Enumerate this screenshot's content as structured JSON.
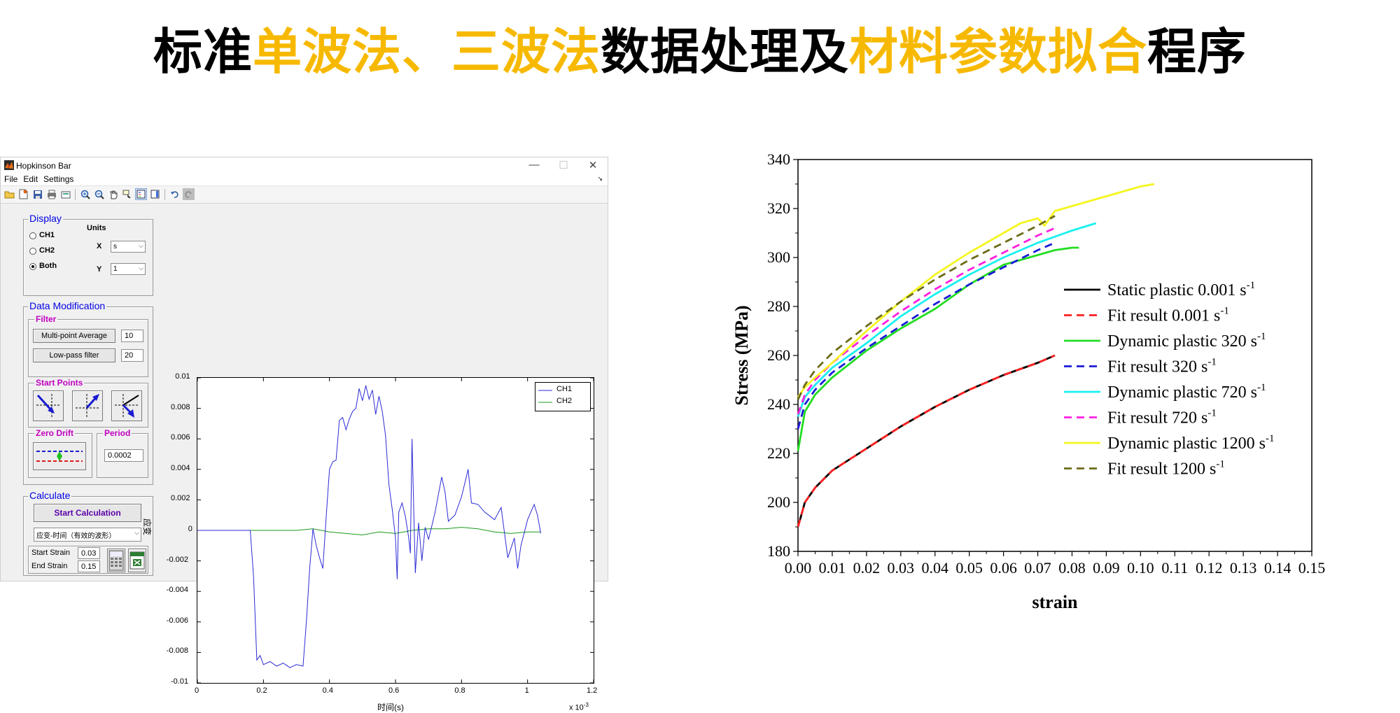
{
  "heading": {
    "parts": [
      {
        "text": "标准",
        "color": "black"
      },
      {
        "text": "单波法、三波法",
        "color": "yellow"
      },
      {
        "text": "数据处理及",
        "color": "black"
      },
      {
        "text": "材料参数拟合",
        "color": "yellow"
      },
      {
        "text": "程序",
        "color": "black"
      }
    ],
    "accent_color": "#f7b900"
  },
  "window": {
    "title": "Hopkinson Bar",
    "controls": {
      "minimize": "—",
      "maximize": "☐",
      "close": "✕"
    },
    "menu": [
      "File",
      "Edit",
      "Settings"
    ],
    "toolbar_icons": [
      "open-folder-icon",
      "new-figure-icon",
      "save-icon",
      "print-icon",
      "print-preview-icon",
      "zoom-in-icon",
      "zoom-out-icon",
      "pan-icon",
      "data-cursor-icon",
      "insert-legend-icon",
      "insert-colorbar-icon",
      "undo-icon",
      "redo-icon"
    ]
  },
  "display_panel": {
    "title": "Display",
    "channels": [
      {
        "label": "CH1",
        "selected": false
      },
      {
        "label": "CH2",
        "selected": false
      },
      {
        "label": "Both",
        "selected": true
      }
    ],
    "units_label": "Units",
    "x_label": "X",
    "x_value": "s",
    "y_label": "Y",
    "y_value": "1"
  },
  "data_mod_panel": {
    "title": "Data Modification",
    "filter_title": "Filter",
    "multipoint_button": "Multi-point Average",
    "multipoint_value": "10",
    "lowpass_button": "Low-pass filter",
    "lowpass_value": "20",
    "start_points_title": "Start Points",
    "zero_drift_title": "Zero Drift",
    "period_title": "Period",
    "period_value": "0.0002"
  },
  "calculate_panel": {
    "title": "Calculate",
    "start_button": "Start Calculation",
    "mode_select": "应变-时间（有效的波形）",
    "start_strain_label": "Start Strain",
    "start_strain_value": "0.03",
    "end_strain_label": "End Strain",
    "end_strain_value": "0.15"
  },
  "chart_data": [
    {
      "type": "line",
      "ylabel": "应变",
      "xlabel": "时间(s)",
      "x_multiplier_label": "x 10",
      "x_multiplier_exp": "-3",
      "xlim": [
        0,
        1.2
      ],
      "ylim": [
        -0.01,
        0.01
      ],
      "xticks": [
        "0",
        "0.2",
        "0.4",
        "0.6",
        "0.8",
        "1",
        "1.2"
      ],
      "yticks": [
        "0.01",
        "0.008",
        "0.006",
        "0.004",
        "0.002",
        "0",
        "-0.002",
        "-0.004",
        "-0.006",
        "-0.008",
        "-0.01"
      ],
      "legend_position": "top-right",
      "series": [
        {
          "name": "CH1",
          "color": "#2b2bd6",
          "points": [
            [
              0,
              0
            ],
            [
              0.1,
              0
            ],
            [
              0.16,
              0
            ],
            [
              0.17,
              -0.003
            ],
            [
              0.18,
              -0.0085
            ],
            [
              0.19,
              -0.0082
            ],
            [
              0.2,
              -0.0088
            ],
            [
              0.22,
              -0.0086
            ],
            [
              0.24,
              -0.0089
            ],
            [
              0.26,
              -0.0087
            ],
            [
              0.28,
              -0.009
            ],
            [
              0.3,
              -0.0088
            ],
            [
              0.32,
              -0.0089
            ],
            [
              0.33,
              -0.006
            ],
            [
              0.34,
              -0.0025
            ],
            [
              0.35,
              0.0001
            ],
            [
              0.36,
              -0.001
            ],
            [
              0.37,
              -0.0018
            ],
            [
              0.38,
              -0.0025
            ],
            [
              0.39,
              0.0009
            ],
            [
              0.4,
              0.004
            ],
            [
              0.41,
              0.0045
            ],
            [
              0.42,
              0.0046
            ],
            [
              0.43,
              0.0072
            ],
            [
              0.44,
              0.0074
            ],
            [
              0.45,
              0.0066
            ],
            [
              0.46,
              0.0073
            ],
            [
              0.47,
              0.0078
            ],
            [
              0.48,
              0.008
            ],
            [
              0.49,
              0.0093
            ],
            [
              0.5,
              0.0085
            ],
            [
              0.51,
              0.0095
            ],
            [
              0.52,
              0.0086
            ],
            [
              0.53,
              0.0092
            ],
            [
              0.54,
              0.0076
            ],
            [
              0.55,
              0.0088
            ],
            [
              0.56,
              0.0078
            ],
            [
              0.57,
              0.0062
            ],
            [
              0.58,
              0.003
            ],
            [
              0.59,
              0.0014
            ],
            [
              0.6,
              -0.0005
            ],
            [
              0.605,
              -0.0032
            ],
            [
              0.61,
              0.0012
            ],
            [
              0.62,
              0.0018
            ],
            [
              0.63,
              0.0009
            ],
            [
              0.64,
              -0.0005
            ],
            [
              0.645,
              -0.0015
            ],
            [
              0.65,
              0.006
            ],
            [
              0.66,
              -0.0028
            ],
            [
              0.67,
              0.0005
            ],
            [
              0.68,
              -0.002
            ],
            [
              0.69,
              0.0002
            ],
            [
              0.7,
              -0.0006
            ],
            [
              0.72,
              0.0012
            ],
            [
              0.74,
              0.0035
            ],
            [
              0.75,
              0.0025
            ],
            [
              0.76,
              0.0006
            ],
            [
              0.78,
              0.001
            ],
            [
              0.8,
              0.0022
            ],
            [
              0.82,
              0.004
            ],
            [
              0.83,
              0.0018
            ],
            [
              0.85,
              0.0017
            ],
            [
              0.87,
              0.0012
            ],
            [
              0.9,
              0.0007
            ],
            [
              0.92,
              0.0015
            ],
            [
              0.94,
              -0.0018
            ],
            [
              0.96,
              -0.0005
            ],
            [
              0.97,
              -0.0025
            ],
            [
              0.98,
              -0.001
            ],
            [
              1.0,
              0.0007
            ],
            [
              1.02,
              0.0017
            ],
            [
              1.03,
              0.001
            ],
            [
              1.04,
              -0.0002
            ]
          ]
        },
        {
          "name": "CH2",
          "color": "#1a9a1a",
          "points": [
            [
              0,
              0
            ],
            [
              0.3,
              0
            ],
            [
              0.35,
              0.0001
            ],
            [
              0.4,
              -0.0001
            ],
            [
              0.45,
              -0.0002
            ],
            [
              0.5,
              -0.0003
            ],
            [
              0.55,
              -0.0001
            ],
            [
              0.6,
              -0.0002
            ],
            [
              0.65,
              0
            ],
            [
              0.7,
              0.0001
            ],
            [
              0.75,
              0.0001
            ],
            [
              0.8,
              0.0002
            ],
            [
              0.85,
              0.0001
            ],
            [
              0.9,
              -0.0001
            ],
            [
              0.95,
              -0.0002
            ],
            [
              1.0,
              -0.0001
            ],
            [
              1.04,
              -0.0001
            ]
          ]
        }
      ]
    },
    {
      "type": "line",
      "xlabel": "strain",
      "ylabel": "Stress (MPa)",
      "xlim": [
        0,
        0.15
      ],
      "ylim": [
        180,
        340
      ],
      "xticks": [
        "0.00",
        "0.01",
        "0.02",
        "0.03",
        "0.04",
        "0.05",
        "0.06",
        "0.07",
        "0.08",
        "0.09",
        "0.10",
        "0.11",
        "0.12",
        "0.13",
        "0.14",
        "0.15"
      ],
      "yticks": [
        "180",
        "200",
        "220",
        "240",
        "260",
        "280",
        "300",
        "320",
        "340"
      ],
      "legend_position": "center-right",
      "series": [
        {
          "name": "Static plastic 0.001 s",
          "exp": "-1",
          "color": "#000000",
          "dashed": false,
          "x": [
            0,
            0.002,
            0.005,
            0.01,
            0.02,
            0.03,
            0.04,
            0.05,
            0.06,
            0.07,
            0.075
          ],
          "y": [
            190,
            200,
            206,
            213,
            222,
            231,
            239,
            246,
            252,
            257,
            260
          ]
        },
        {
          "name": "Fit result 0.001 s",
          "exp": "-1",
          "color": "#ff2020",
          "dashed": true,
          "x": [
            0,
            0.002,
            0.005,
            0.01,
            0.02,
            0.03,
            0.04,
            0.05,
            0.06,
            0.07,
            0.075
          ],
          "y": [
            190,
            200,
            206,
            213,
            222,
            231,
            239,
            246,
            252,
            257,
            260
          ]
        },
        {
          "name": "Dynamic plastic 320 s",
          "exp": "-1",
          "color": "#22dd22",
          "dashed": false,
          "x": [
            0,
            0.002,
            0.005,
            0.01,
            0.02,
            0.03,
            0.04,
            0.05,
            0.06,
            0.07,
            0.075,
            0.08,
            0.082
          ],
          "y": [
            221,
            237,
            244,
            251,
            262,
            271,
            279,
            289,
            297,
            301,
            303,
            304,
            304
          ]
        },
        {
          "name": "Fit result 320 s",
          "exp": "-1",
          "color": "#1b1bd6",
          "dashed": true,
          "x": [
            0,
            0.002,
            0.005,
            0.01,
            0.02,
            0.03,
            0.04,
            0.05,
            0.06,
            0.07,
            0.075
          ],
          "y": [
            230,
            240,
            246,
            253,
            263,
            272,
            281,
            289,
            296,
            303,
            306
          ]
        },
        {
          "name": "Dynamic plastic 720 s",
          "exp": "-1",
          "color": "#19f0f0",
          "dashed": false,
          "x": [
            0,
            0.002,
            0.005,
            0.01,
            0.02,
            0.03,
            0.04,
            0.05,
            0.06,
            0.07,
            0.08,
            0.087
          ],
          "y": [
            235,
            243,
            248,
            255,
            265,
            276,
            285,
            293,
            300,
            306,
            311,
            314
          ]
        },
        {
          "name": "Fit result 720 s",
          "exp": "-1",
          "color": "#ff20e0",
          "dashed": true,
          "x": [
            0,
            0.002,
            0.005,
            0.01,
            0.02,
            0.03,
            0.04,
            0.05,
            0.06,
            0.07,
            0.075
          ],
          "y": [
            236,
            244,
            250,
            257,
            268,
            278,
            287,
            295,
            302,
            309,
            312
          ]
        },
        {
          "name": "Dynamic plastic 1200 s",
          "exp": "-1",
          "color": "#f5f520",
          "dashed": false,
          "x": [
            0,
            0.002,
            0.005,
            0.01,
            0.02,
            0.03,
            0.04,
            0.05,
            0.06,
            0.065,
            0.07,
            0.072,
            0.075,
            0.08,
            0.09,
            0.1,
            0.104
          ],
          "y": [
            243,
            247,
            251,
            257,
            270,
            282,
            293,
            302,
            310,
            314,
            316,
            313,
            319,
            321,
            325,
            329,
            330
          ]
        },
        {
          "name": "Fit result 1200 s",
          "exp": "-1",
          "color": "#6b6b18",
          "dashed": true,
          "x": [
            0,
            0.002,
            0.005,
            0.01,
            0.02,
            0.03,
            0.04,
            0.05,
            0.06,
            0.07,
            0.075
          ],
          "y": [
            242,
            248,
            254,
            261,
            272,
            282,
            291,
            299,
            306,
            313,
            317
          ]
        }
      ]
    }
  ]
}
